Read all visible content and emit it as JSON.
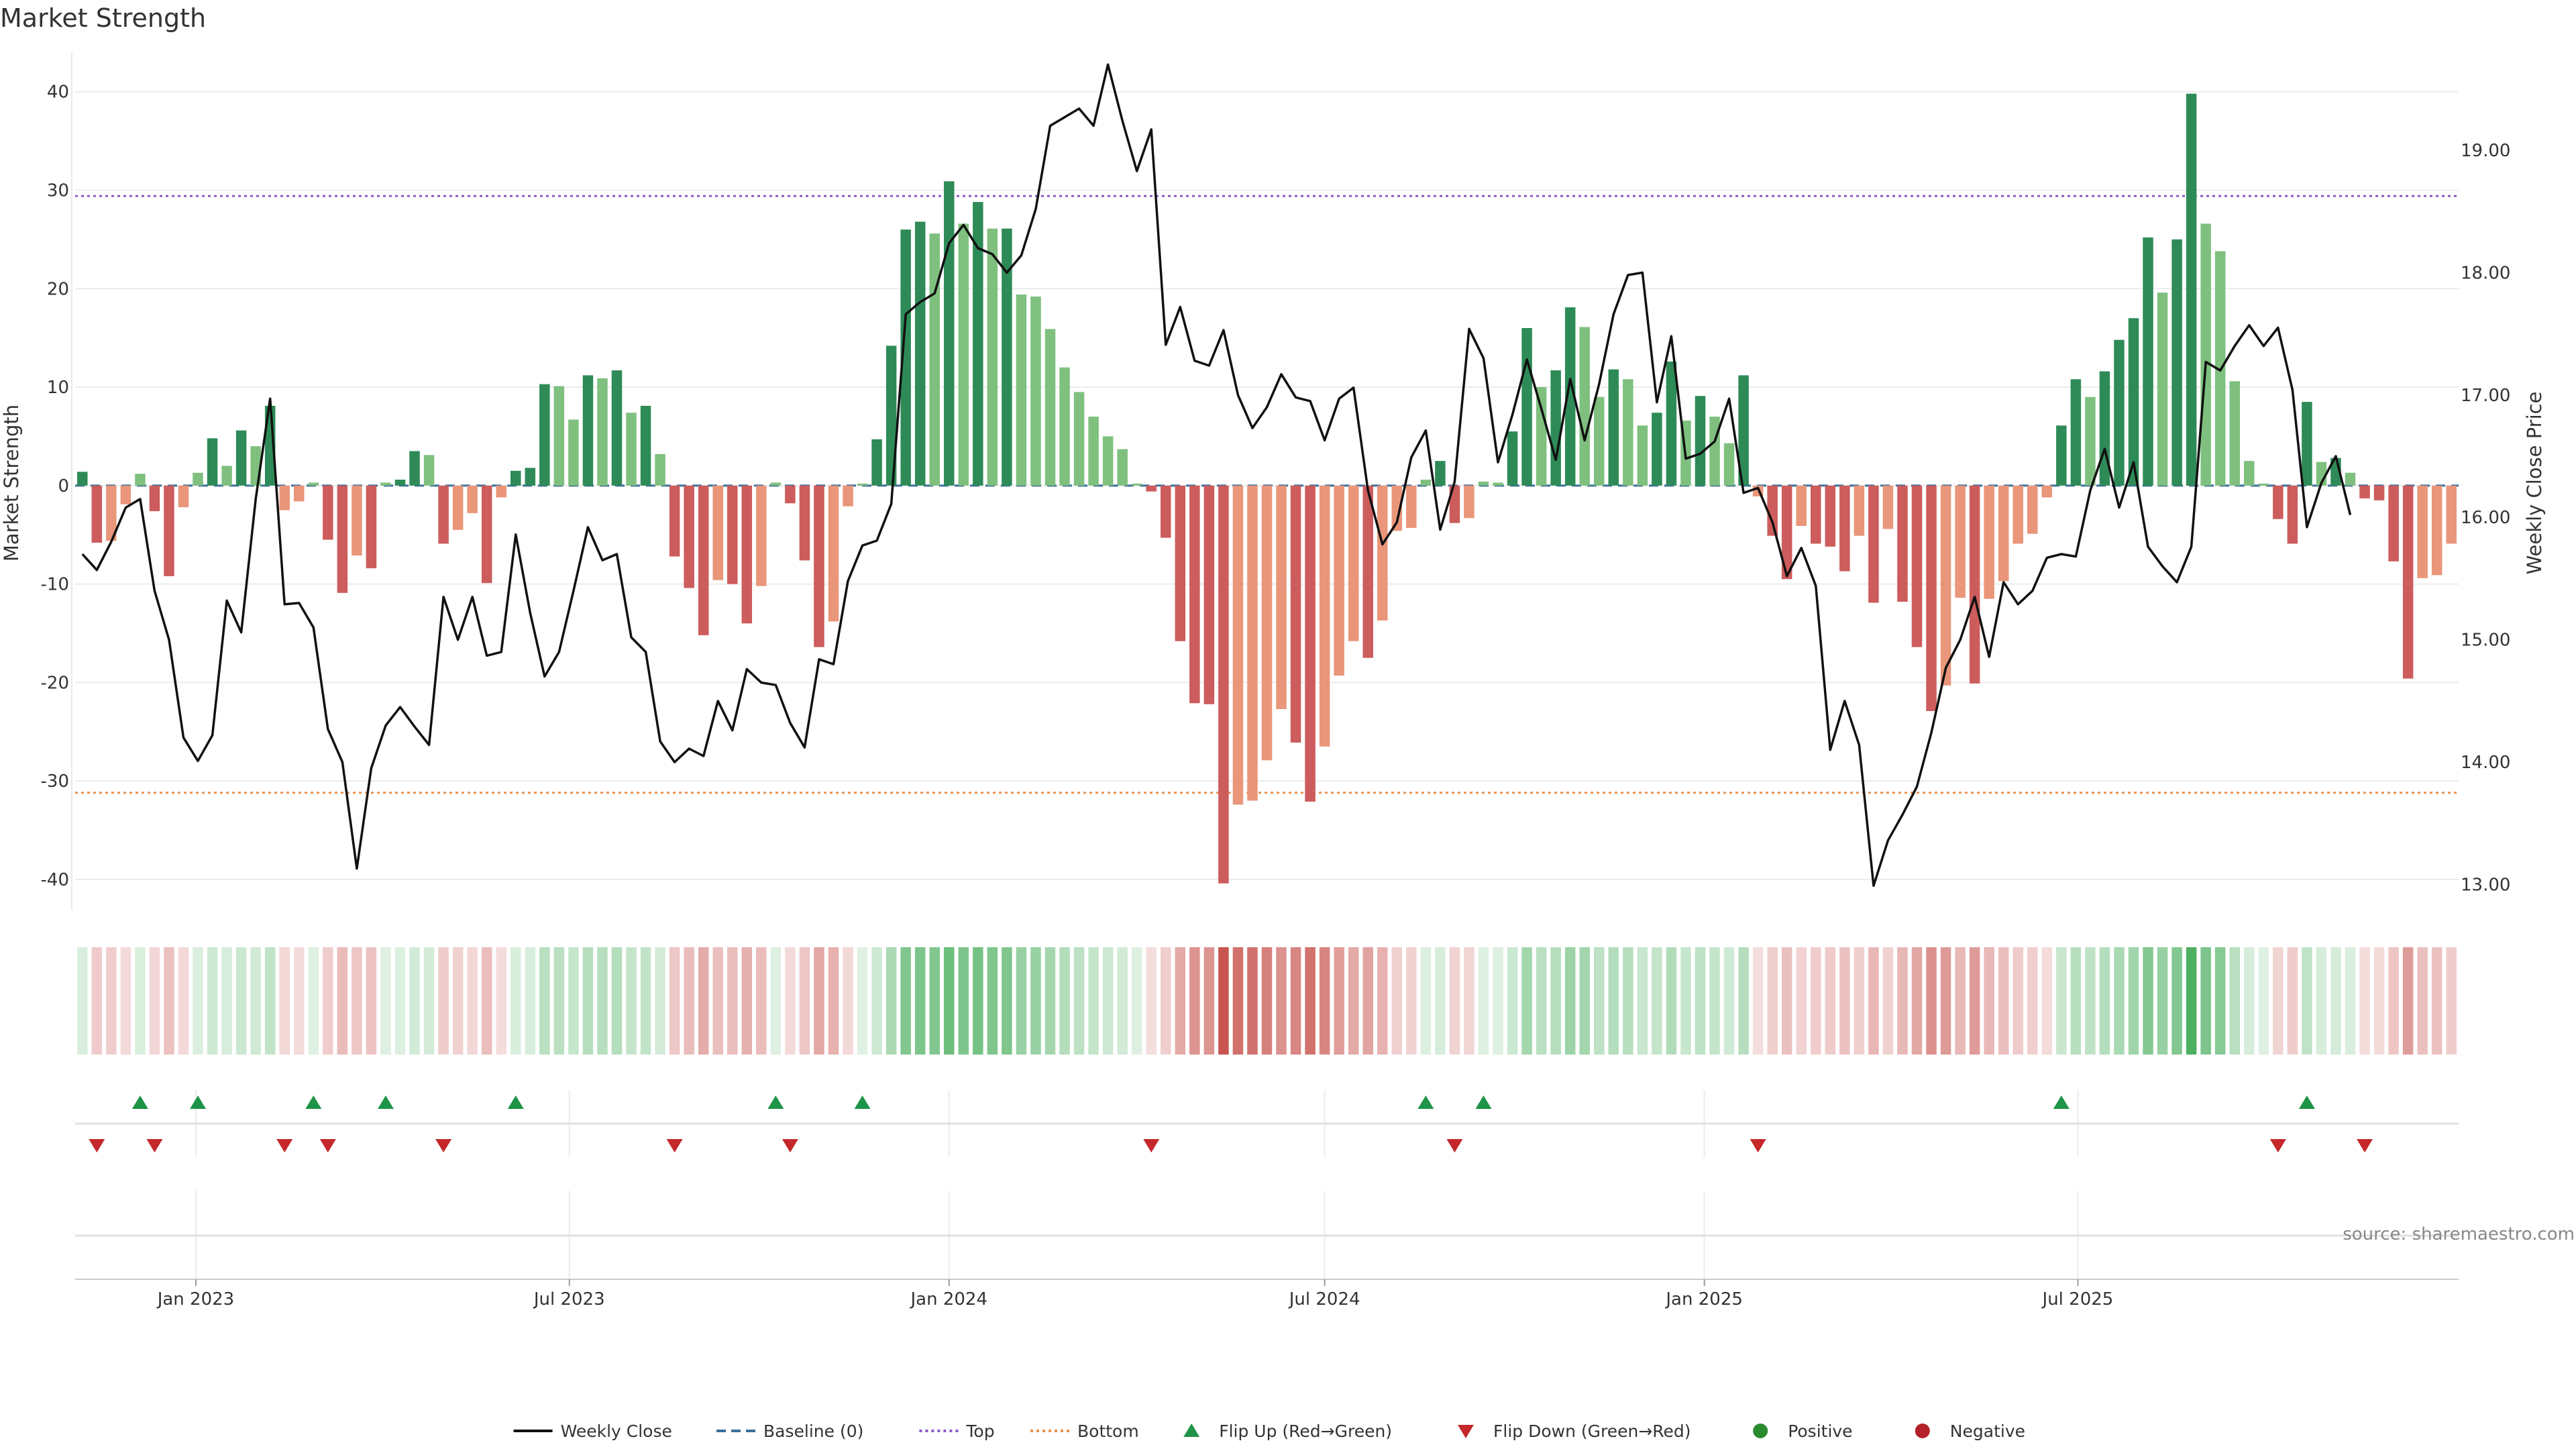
{
  "chart_data": {
    "type": "bar",
    "title": "Market Strength",
    "ylabel": "Market Strength",
    "y2label": "Weekly Close Price",
    "ylim": [
      -43,
      44
    ],
    "y2lim": [
      12.8,
      19.8
    ],
    "yticks": [
      40,
      30,
      20,
      10,
      0,
      -10,
      -20,
      -30,
      -40
    ],
    "y2ticks": [
      "19.00",
      "18.00",
      "17.00",
      "16.00",
      "15.00",
      "14.00",
      "13.00"
    ],
    "y2tick_values": [
      19,
      18,
      17,
      16,
      15,
      14,
      13
    ],
    "x_start": "2022-11-07",
    "x_step_days": 7,
    "x_ticks": [
      {
        "label": "Jan 2023",
        "date": "2023-01-01"
      },
      {
        "label": "Jul 2023",
        "date": "2023-07-01"
      },
      {
        "label": "Jan 2024",
        "date": "2024-01-01"
      },
      {
        "label": "Jul 2024",
        "date": "2024-07-01"
      },
      {
        "label": "Jan 2025",
        "date": "2025-01-01"
      },
      {
        "label": "Jul 2025",
        "date": "2025-07-01"
      }
    ],
    "top_level": 29.4,
    "bottom_level": -31.2,
    "grid": true,
    "legend_position": "bottom-center",
    "source": "source: sharemaestro.com",
    "series": [
      {
        "name": "Market Strength",
        "values": [
          1.4,
          -5.8,
          -5.6,
          -1.9,
          1.2,
          -2.6,
          -9.2,
          -2.2,
          1.3,
          4.8,
          2.0,
          5.6,
          4.0,
          8.1,
          -2.5,
          -1.6,
          0.3,
          -5.5,
          -10.9,
          -7.1,
          -8.4,
          0.3,
          0.6,
          3.5,
          3.1,
          -5.9,
          -4.5,
          -2.8,
          -9.9,
          -1.2,
          1.5,
          1.8,
          10.3,
          10.1,
          6.7,
          11.2,
          10.9,
          11.7,
          7.4,
          8.1,
          3.2,
          -7.2,
          -10.4,
          -15.2,
          -9.6,
          -10.0,
          -14.0,
          -10.2,
          0.3,
          -1.8,
          -7.6,
          -16.4,
          -13.8,
          -2.1,
          0.2,
          4.7,
          14.2,
          26.0,
          26.8,
          25.6,
          30.9,
          26.6,
          28.8,
          26.1,
          26.1,
          19.4,
          19.2,
          15.9,
          12.0,
          9.5,
          7.0,
          5.0,
          3.7,
          0.2,
          -0.6,
          -5.3,
          -15.8,
          -22.1,
          -22.2,
          -40.4,
          -32.4,
          -32.0,
          -27.9,
          -22.7,
          -26.1,
          -32.1,
          -26.5,
          -19.3,
          -15.8,
          -17.5,
          -13.7,
          -4.6,
          -4.3,
          0.6,
          2.5,
          -3.8,
          -3.3,
          0.4,
          0.3,
          5.5,
          16.0,
          10.0,
          11.7,
          18.1,
          16.1,
          9.0,
          11.8,
          10.8,
          6.1,
          7.4,
          12.6,
          6.6,
          9.1,
          7.0,
          4.3,
          11.2,
          -1.1,
          -5.1,
          -9.5,
          -4.1,
          -5.9,
          -6.2,
          -8.7,
          -5.1,
          -11.9,
          -4.4,
          -11.8,
          -16.4,
          -22.9,
          -20.3,
          -11.4,
          -20.1,
          -11.5,
          -9.7,
          -5.9,
          -4.9,
          -1.2,
          6.1,
          10.8,
          9.0,
          11.6,
          14.8,
          17.0,
          25.2,
          19.6,
          25.0,
          39.8,
          26.6,
          23.8,
          10.6,
          2.5,
          0.2,
          -3.4,
          -5.9,
          8.5,
          2.4,
          2.8,
          1.3,
          -1.3,
          -1.5,
          -7.7,
          -19.6,
          -9.4,
          -9.1,
          -5.9
        ]
      },
      {
        "name": "Weekly Close",
        "values": [
          15.7,
          15.57,
          15.8,
          16.08,
          16.15,
          15.4,
          15.0,
          14.2,
          14.01,
          14.22,
          15.32,
          15.06,
          16.15,
          16.97,
          15.29,
          15.3,
          15.1,
          14.27,
          14.0,
          13.13,
          13.95,
          14.3,
          14.45,
          14.29,
          14.14,
          15.35,
          15.0,
          15.35,
          14.87,
          14.9,
          15.86,
          15.22,
          14.7,
          14.9,
          15.4,
          15.92,
          15.65,
          15.7,
          15.02,
          14.9,
          14.17,
          14.0,
          14.11,
          14.05,
          14.5,
          14.26,
          14.76,
          14.65,
          14.63,
          14.32,
          14.12,
          14.84,
          14.8,
          15.48,
          15.77,
          15.81,
          16.11,
          17.66,
          17.76,
          17.83,
          18.24,
          18.39,
          18.2,
          18.15,
          18.0,
          18.14,
          18.52,
          19.2,
          19.27,
          19.34,
          19.2,
          19.7,
          19.24,
          18.83,
          19.17,
          17.41,
          17.72,
          17.28,
          17.24,
          17.53,
          17.0,
          16.73,
          16.9,
          17.17,
          16.98,
          16.95,
          16.63,
          16.97,
          17.06,
          16.22,
          15.78,
          15.96,
          16.49,
          16.71,
          15.9,
          16.29,
          17.54,
          17.3,
          16.45,
          16.84,
          17.29,
          16.89,
          16.47,
          17.13,
          16.63,
          17.09,
          17.66,
          17.98,
          18.0,
          16.94,
          17.48,
          16.48,
          16.52,
          16.62,
          16.97,
          16.2,
          16.24,
          15.96,
          15.52,
          15.75,
          15.44,
          14.1,
          14.5,
          14.14,
          12.99,
          13.36,
          13.57,
          13.8,
          14.24,
          14.77,
          15.0,
          15.35,
          14.86,
          15.47,
          15.29,
          15.4,
          15.67,
          15.7,
          15.68,
          16.22,
          16.56,
          16.08,
          16.45,
          15.76,
          15.6,
          15.47,
          15.76,
          17.27,
          17.2,
          17.4,
          17.57,
          17.4,
          17.55,
          17.04,
          15.92,
          16.28,
          16.5,
          16.02
        ]
      }
    ]
  },
  "heat_strip_label": "",
  "legend": [
    {
      "label": "Weekly Close",
      "symbol": "line",
      "color": "#111111"
    },
    {
      "label": "Baseline (0)",
      "symbol": "dash",
      "color": "#3b6f9b"
    },
    {
      "label": "Top",
      "symbol": "dot",
      "color": "#8a5bc4"
    },
    {
      "label": "Bottom",
      "symbol": "dot",
      "color": "#e8914f"
    },
    {
      "label": "Flip Up (Red→Green)",
      "symbol": "triangle-up",
      "color": "#1e9448"
    },
    {
      "label": "Flip Down (Green→Red)",
      "symbol": "triangle-down",
      "color": "#c4282b"
    },
    {
      "label": "Positive",
      "symbol": "circle",
      "color": "#2a8a2e"
    },
    {
      "label": "Negative",
      "symbol": "circle",
      "color": "#b3222a"
    }
  ],
  "colors": {
    "pos_strong": "#2e8b57",
    "pos_weak": "#7fc07f",
    "neg_strong": "#cd5c5c",
    "neg_weak": "#e9967a",
    "price_line": "#111111",
    "baseline": "#3b6f9b",
    "grid": "#ececec"
  }
}
